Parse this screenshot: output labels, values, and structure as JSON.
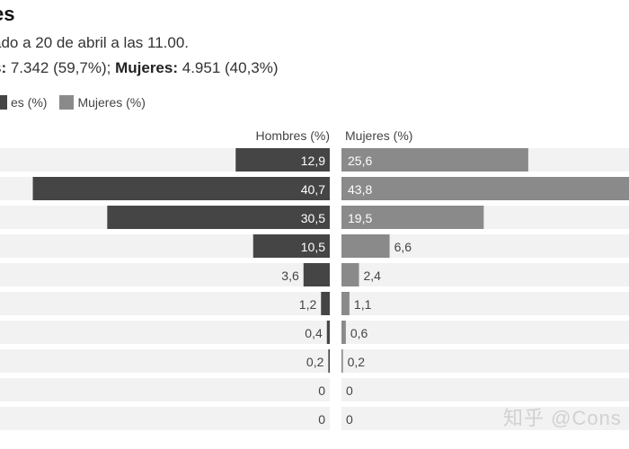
{
  "title": "es",
  "subtitle_line1": "ado a 20 de abril a las 11.00.",
  "subtitle_line2": {
    "men_label": "s:",
    "men_value": " 7.342 (59,7%); ",
    "women_label": "Mujeres:",
    "women_value": " 4.951 (40,3%)"
  },
  "legend": [
    {
      "label": "es (%)",
      "color": "#454545"
    },
    {
      "label": "Mujeres (%)",
      "color": "#8a8a8a"
    }
  ],
  "watermark": "知乎 @Cons",
  "chart_data": {
    "type": "bar",
    "orientation": "horizontal-diverging",
    "categories": [
      "",
      "",
      "",
      "",
      "",
      "",
      "",
      "",
      "",
      ""
    ],
    "series": [
      {
        "name": "Hombres (%)",
        "color": "#454545",
        "values": [
          12.9,
          40.7,
          30.5,
          10.5,
          3.6,
          1.2,
          0.4,
          0.2,
          0,
          0
        ],
        "labels": [
          "12,9",
          "40,7",
          "30,5",
          "10,5",
          "3,6",
          "1,2",
          "0,4",
          "0,2",
          "0",
          "0"
        ]
      },
      {
        "name": "Mujeres (%)",
        "color": "#8a8a8a",
        "values": [
          25.6,
          43.8,
          19.5,
          6.6,
          2.4,
          1.1,
          0.6,
          0.2,
          0,
          0
        ],
        "labels": [
          "25,6",
          "43,8",
          "19,5",
          "6,6",
          "2,4",
          "1,1",
          "0,6",
          "0,2",
          "0",
          "0"
        ]
      }
    ],
    "xlim": [
      0,
      45
    ],
    "grid": false,
    "row_band_color": "#f2f2f2",
    "legend_position": "top-left"
  }
}
